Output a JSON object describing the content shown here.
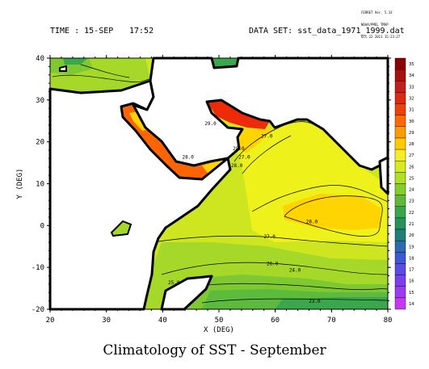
{
  "stamp": {
    "line1": "FERRET Ver. 5.33",
    "line2": "NOAA/PMEL TMAP",
    "line3": "Oct 22 2011 15:23:27"
  },
  "header": {
    "time_label": "TIME : 15-SEP",
    "clock": "17:52",
    "dataset_label": "DATA SET: sst_data_1971_1999.dat"
  },
  "caption": "Climatology of SST - September",
  "colors": {
    "land": "#ffffff",
    "coast": "#000000",
    "c22": "#3aa84a",
    "c23": "#5cba3c",
    "c24": "#7ec832",
    "c25": "#a6d82a",
    "c26": "#cde620",
    "c27": "#eef21a",
    "c28": "#ffd400",
    "c29": "#ff9a00",
    "c30": "#ff6400",
    "c31": "#ee2a08"
  },
  "chart_data": {
    "type": "heatmap",
    "title": "Climatology of SST - September",
    "xlabel": "X (DEG)",
    "ylabel": "Y (DEG)",
    "xlim": [
      20,
      80
    ],
    "ylim": [
      -20,
      40
    ],
    "xticks": [
      20,
      30,
      40,
      50,
      60,
      70,
      80
    ],
    "yticks": [
      -20,
      -10,
      0,
      10,
      20,
      30,
      40
    ],
    "colorbar": {
      "levels": [
        35,
        34,
        33,
        32,
        31,
        30,
        29,
        28,
        27,
        26,
        25,
        24,
        23,
        22,
        21,
        20,
        19,
        18,
        17,
        16,
        15,
        14
      ],
      "colors": [
        "#8b0000",
        "#a81010",
        "#c41e1e",
        "#dc2a10",
        "#ee4008",
        "#ff6a00",
        "#ff9a00",
        "#ffcc00",
        "#f7ee20",
        "#d6ec1a",
        "#b0e020",
        "#86cc2c",
        "#5eb83a",
        "#3aa64c",
        "#24925a",
        "#1c8078",
        "#2a6ab0",
        "#3c58d2",
        "#5a4ae6",
        "#7a40ee",
        "#a03af2",
        "#c838f2"
      ]
    },
    "contour_labels": [
      {
        "text": "27.0",
        "x": 58.5,
        "y": 21
      },
      {
        "text": "27.0",
        "x": 54.5,
        "y": 16
      },
      {
        "text": "28.0",
        "x": 53.5,
        "y": 18
      },
      {
        "text": "28.0",
        "x": 53.2,
        "y": 14
      },
      {
        "text": "28.0",
        "x": 66.5,
        "y": 0.5
      },
      {
        "text": "27.0",
        "x": 59,
        "y": -3
      },
      {
        "text": "26.0",
        "x": 59.5,
        "y": -9.5
      },
      {
        "text": "24.0",
        "x": 63.5,
        "y": -11
      },
      {
        "text": "25.0",
        "x": 42,
        "y": -14
      },
      {
        "text": "23.0",
        "x": 67,
        "y": -18.5
      },
      {
        "text": "28.0",
        "x": 44.5,
        "y": 16
      },
      {
        "text": "29.0",
        "x": 48.5,
        "y": 24
      }
    ]
  }
}
